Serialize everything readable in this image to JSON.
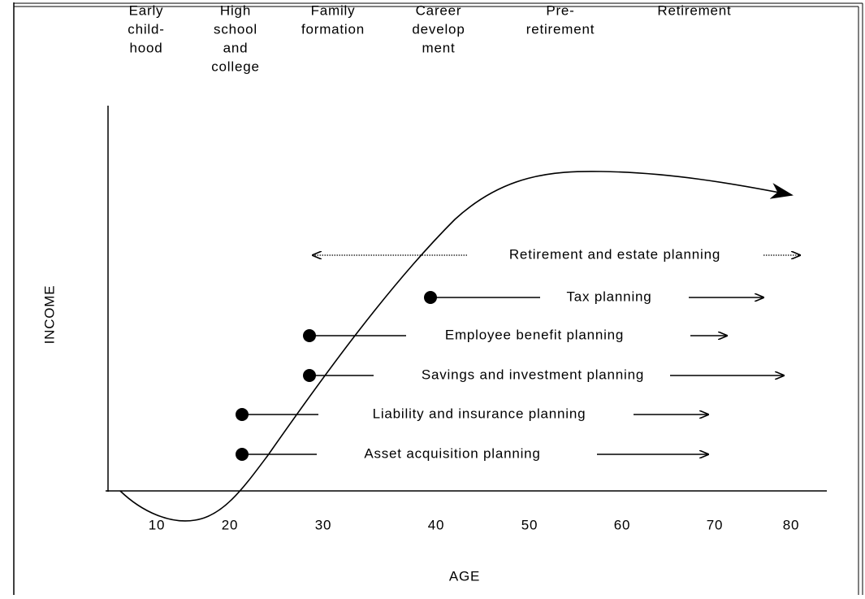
{
  "stages": [
    {
      "lines": [
        "Early",
        "child-",
        "hood"
      ]
    },
    {
      "lines": [
        "High",
        "school",
        "and",
        "college"
      ]
    },
    {
      "lines": [
        "Family",
        "formation"
      ]
    },
    {
      "lines": [
        "Career",
        "develop",
        "ment"
      ]
    },
    {
      "lines": [
        "Pre-",
        "retirement"
      ]
    },
    {
      "lines": [
        "Retirement"
      ]
    }
  ],
  "y_axis_label": "INCOME",
  "x_axis_label": "AGE",
  "ages": [
    "10",
    "20",
    "30",
    "40",
    "50",
    "60",
    "70",
    "80"
  ],
  "planning": [
    "Retirement and estate planning",
    "Tax planning",
    "Employee benefit planning",
    "Savings and investment planning",
    "Liability and insurance planning",
    "Asset acquisition planning"
  ]
}
